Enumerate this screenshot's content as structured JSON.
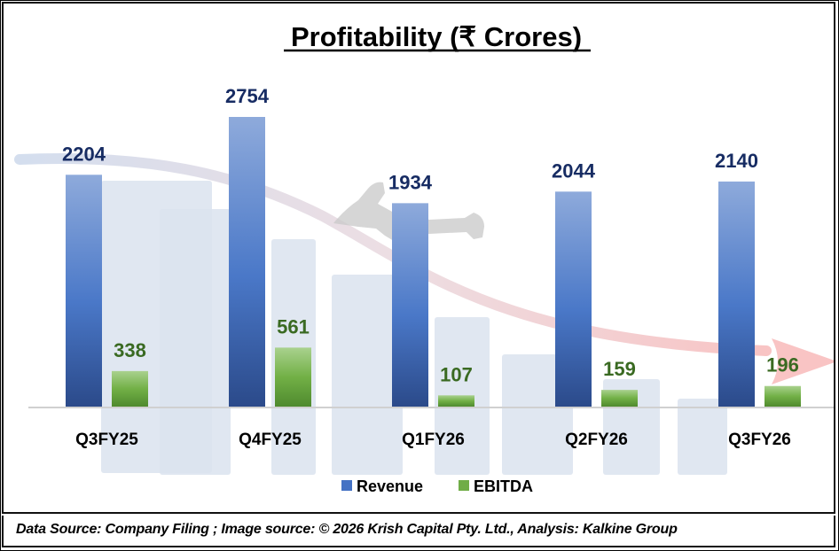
{
  "chart_data": {
    "type": "bar",
    "title": "Profitability (₹ Crores)",
    "xlabel": "",
    "ylabel": "",
    "categories": [
      "Q3FY25",
      "Q4FY25",
      "Q1FY26",
      "Q2FY26",
      "Q3FY26"
    ],
    "series": [
      {
        "name": "Revenue",
        "values": [
          2204,
          2754,
          1934,
          2044,
          2140
        ],
        "color": "#4472c4"
      },
      {
        "name": "EBITDA",
        "values": [
          338,
          561,
          107,
          159,
          196
        ],
        "color": "#70ad47"
      }
    ],
    "ylim": [
      0,
      3000
    ],
    "grid": false,
    "legend": "bottom",
    "data_labels": true
  },
  "colors": {
    "revenue_top": "#8eaadb",
    "revenue_mid": "#4a78c8",
    "revenue_bottom": "#2b4a8a",
    "ebitda_top": "#a9d18e",
    "ebitda_bottom": "#4f8a2e",
    "revenue_label": "#172c63",
    "ebitda_label": "#3a6a22",
    "trend_arrow": "#f4b8b8",
    "backdrop_bars": "#dbe3ef"
  },
  "footer": {
    "text": "Data Source: Company Filing ; Image source: © 2026 Krish Capital Pty. Ltd., Analysis: Kalkine Group"
  }
}
